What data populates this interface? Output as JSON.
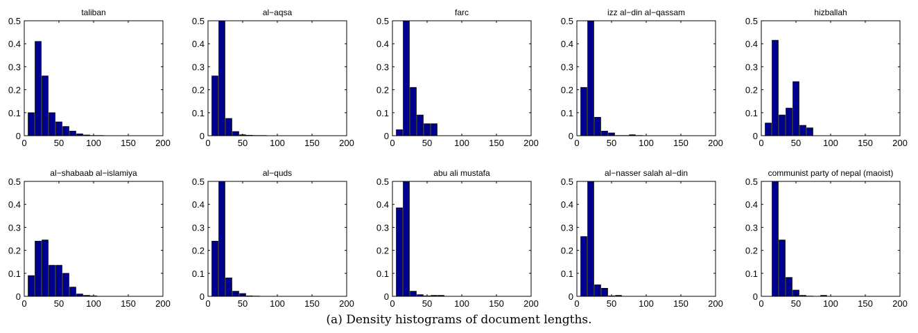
{
  "caption": "(a) Density histograms of document lengths.",
  "colors": {
    "bar": "#00008f",
    "bar_edge": "#000000",
    "axis": "#000000"
  },
  "chart_data": [
    {
      "type": "bar",
      "title": "taliban",
      "xlim": [
        0,
        200
      ],
      "ylim": [
        0,
        0.5
      ],
      "xticks": [
        "0",
        "50",
        "100",
        "150",
        "200"
      ],
      "yticks": [
        "0",
        "0.1",
        "0.2",
        "0.3",
        "0.4",
        "0.5"
      ],
      "bin_width": 10,
      "x": [
        10,
        20,
        30,
        40,
        50,
        60,
        70,
        80,
        90,
        100,
        110,
        120,
        130,
        140,
        150,
        160,
        170,
        180,
        190
      ],
      "values": [
        0.1,
        0.41,
        0.26,
        0.1,
        0.06,
        0.04,
        0.02,
        0.008,
        0.003,
        0.001,
        0.001,
        0,
        0,
        0,
        0,
        0,
        0,
        0,
        0
      ]
    },
    {
      "type": "bar",
      "title": "al−aqsa",
      "xlim": [
        0,
        200
      ],
      "ylim": [
        0,
        0.5
      ],
      "xticks": [
        "0",
        "50",
        "100",
        "150",
        "200"
      ],
      "yticks": [
        "0",
        "0.1",
        "0.2",
        "0.3",
        "0.4",
        "0.5"
      ],
      "bin_width": 10,
      "x": [
        10,
        20,
        30,
        40,
        50,
        60,
        70,
        80,
        90,
        100,
        110,
        120,
        130,
        140,
        150,
        160,
        170,
        180,
        190
      ],
      "values": [
        0.26,
        0.5,
        0.075,
        0.018,
        0.004,
        0.002,
        0.001,
        0.001,
        0,
        0,
        0,
        0,
        0,
        0,
        0,
        0,
        0,
        0,
        0
      ]
    },
    {
      "type": "bar",
      "title": "farc",
      "xlim": [
        0,
        200
      ],
      "ylim": [
        0,
        0.5
      ],
      "xticks": [
        "0",
        "50",
        "100",
        "150",
        "200"
      ],
      "yticks": [
        "0",
        "0.1",
        "0.2",
        "0.3",
        "0.4",
        "0.5"
      ],
      "bin_width": 10,
      "x": [
        10,
        20,
        30,
        40,
        50,
        60,
        70,
        80,
        90,
        100,
        110,
        120,
        130,
        140,
        150,
        160,
        170,
        180,
        190
      ],
      "values": [
        0.026,
        0.5,
        0.21,
        0.09,
        0.052,
        0.052,
        0,
        0,
        0,
        0,
        0,
        0,
        0,
        0,
        0,
        0,
        0,
        0,
        0
      ]
    },
    {
      "type": "bar",
      "title": "izz al−din al−qassam",
      "xlim": [
        0,
        200
      ],
      "ylim": [
        0,
        0.5
      ],
      "xticks": [
        "0",
        "50",
        "100",
        "150",
        "200"
      ],
      "yticks": [
        "0",
        "0.1",
        "0.2",
        "0.3",
        "0.4",
        "0.5"
      ],
      "bin_width": 10,
      "x": [
        10,
        20,
        30,
        40,
        50,
        60,
        70,
        80,
        90,
        100,
        110,
        120,
        130,
        140,
        150,
        160,
        170,
        180,
        190
      ],
      "values": [
        0.21,
        0.5,
        0.08,
        0.02,
        0.012,
        0.001,
        0.001,
        0.004,
        0.001,
        0,
        0,
        0,
        0,
        0,
        0,
        0,
        0,
        0,
        0
      ]
    },
    {
      "type": "bar",
      "title": "hizballah",
      "xlim": [
        0,
        200
      ],
      "ylim": [
        0,
        0.5
      ],
      "xticks": [
        "0",
        "50",
        "100",
        "150",
        "200"
      ],
      "yticks": [
        "0",
        "0.1",
        "0.2",
        "0.3",
        "0.4",
        "0.5"
      ],
      "bin_width": 10,
      "x": [
        10,
        20,
        30,
        40,
        50,
        60,
        70,
        80,
        90,
        100,
        110,
        120,
        130,
        140,
        150,
        160,
        170,
        180,
        190
      ],
      "values": [
        0.055,
        0.415,
        0.09,
        0.12,
        0.235,
        0.045,
        0.034,
        0,
        0,
        0,
        0,
        0,
        0,
        0,
        0,
        0,
        0,
        0,
        0
      ]
    },
    {
      "type": "bar",
      "title": "al−shabaab al−islamiya",
      "xlim": [
        0,
        200
      ],
      "ylim": [
        0,
        0.5
      ],
      "xticks": [
        "0",
        "50",
        "100",
        "150",
        "200"
      ],
      "yticks": [
        "0",
        "0.1",
        "0.2",
        "0.3",
        "0.4",
        "0.5"
      ],
      "bin_width": 10,
      "x": [
        10,
        20,
        30,
        40,
        50,
        60,
        70,
        80,
        90,
        100,
        110,
        120,
        130,
        140,
        150,
        160,
        170,
        180,
        190
      ],
      "values": [
        0.09,
        0.24,
        0.245,
        0.135,
        0.135,
        0.1,
        0.04,
        0.01,
        0.004,
        0.002,
        0,
        0,
        0,
        0,
        0,
        0,
        0,
        0,
        0
      ]
    },
    {
      "type": "bar",
      "title": "al−quds",
      "xlim": [
        0,
        200
      ],
      "ylim": [
        0,
        0.5
      ],
      "xticks": [
        "0",
        "50",
        "100",
        "150",
        "200"
      ],
      "yticks": [
        "0",
        "0.1",
        "0.2",
        "0.3",
        "0.4",
        "0.5"
      ],
      "bin_width": 10,
      "x": [
        10,
        20,
        30,
        40,
        50,
        60,
        70,
        80,
        90,
        100,
        110,
        120,
        130,
        140,
        150,
        160,
        170,
        180,
        190
      ],
      "values": [
        0.24,
        0.5,
        0.08,
        0.022,
        0.012,
        0.002,
        0.001,
        0,
        0,
        0,
        0,
        0,
        0,
        0,
        0,
        0,
        0,
        0,
        0
      ]
    },
    {
      "type": "bar",
      "title": "abu ali mustafa",
      "xlim": [
        0,
        200
      ],
      "ylim": [
        0,
        0.5
      ],
      "xticks": [
        "0",
        "50",
        "100",
        "150",
        "200"
      ],
      "yticks": [
        "0",
        "0.1",
        "0.2",
        "0.3",
        "0.4",
        "0.5"
      ],
      "bin_width": 10,
      "x": [
        10,
        20,
        30,
        40,
        50,
        60,
        70,
        80,
        90,
        100,
        110,
        120,
        130,
        140,
        150,
        160,
        170,
        180,
        190
      ],
      "values": [
        0.385,
        0.5,
        0.022,
        0.007,
        0.002,
        0.004,
        0.004,
        0,
        0,
        0,
        0,
        0,
        0,
        0,
        0,
        0,
        0,
        0,
        0
      ]
    },
    {
      "type": "bar",
      "title": "al−nasser salah al−din",
      "xlim": [
        0,
        200
      ],
      "ylim": [
        0,
        0.5
      ],
      "xticks": [
        "0",
        "50",
        "100",
        "150",
        "200"
      ],
      "yticks": [
        "0",
        "0.1",
        "0.2",
        "0.3",
        "0.4",
        "0.5"
      ],
      "bin_width": 10,
      "x": [
        10,
        20,
        30,
        40,
        50,
        60,
        70,
        80,
        90,
        100,
        110,
        120,
        130,
        140,
        150,
        160,
        170,
        180,
        190
      ],
      "values": [
        0.26,
        0.5,
        0.05,
        0.035,
        0.002,
        0.004,
        0,
        0,
        0,
        0,
        0,
        0,
        0,
        0,
        0,
        0,
        0,
        0,
        0
      ]
    },
    {
      "type": "bar",
      "title": "communist party of nepal (maoist)",
      "xlim": [
        0,
        200
      ],
      "ylim": [
        0,
        0.5
      ],
      "xticks": [
        "0",
        "50",
        "100",
        "150",
        "200"
      ],
      "yticks": [
        "0",
        "0.1",
        "0.2",
        "0.3",
        "0.4",
        "0.5"
      ],
      "bin_width": 10,
      "x": [
        10,
        20,
        30,
        40,
        50,
        60,
        70,
        80,
        90,
        100,
        110,
        120,
        130,
        140,
        150,
        160,
        170,
        180,
        190
      ],
      "values": [
        0,
        0.5,
        0.245,
        0.082,
        0.027,
        0.004,
        0.001,
        0,
        0.004,
        0,
        0,
        0,
        0,
        0,
        0,
        0,
        0,
        0,
        0
      ]
    }
  ]
}
